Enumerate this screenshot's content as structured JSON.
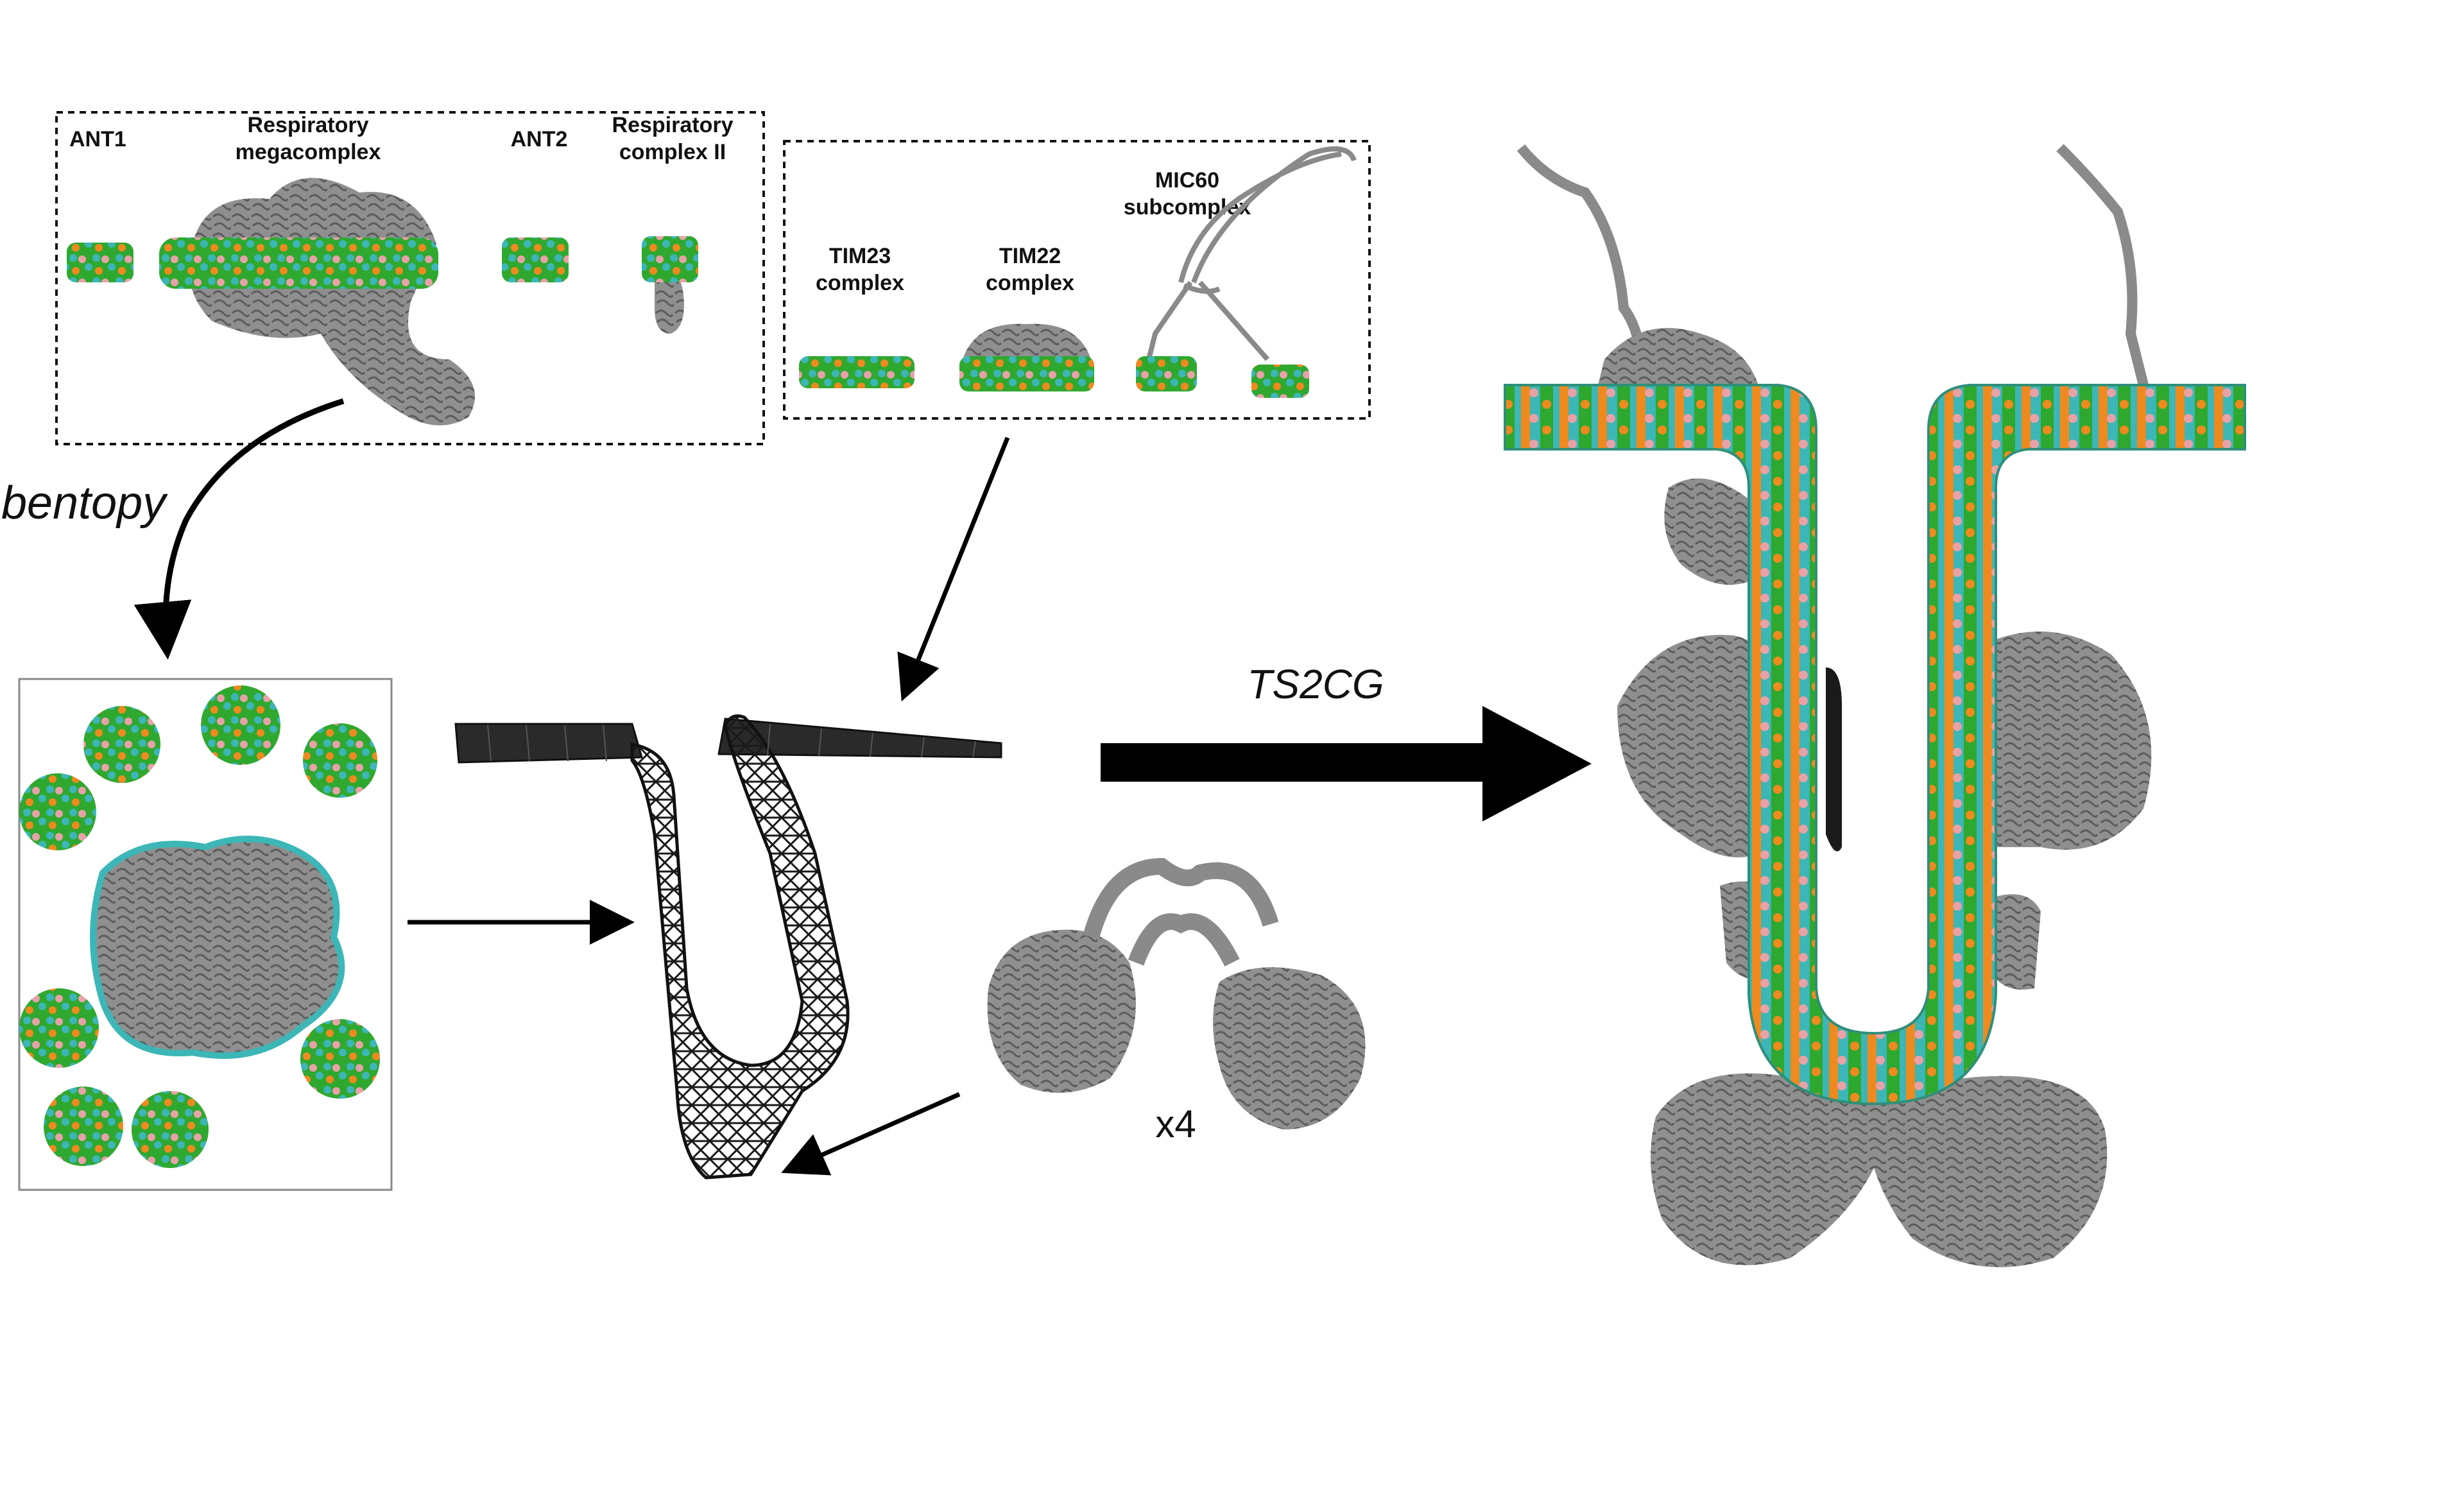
{
  "panel_top_left": {
    "labels": {
      "ant1": "ANT1",
      "resp_mega_1": "Respiratory",
      "resp_mega_2": "megacomplex",
      "ant2": "ANT2",
      "resp_c2_1": "Respiratory",
      "resp_c2_2": "complex II"
    }
  },
  "panel_top_mid": {
    "labels": {
      "tim23_1": "TIM23",
      "tim23_2": "complex",
      "tim22_1": "TIM22",
      "tim22_2": "complex",
      "mic60_1": "MIC60",
      "mic60_2": "subcomplex"
    }
  },
  "arrows": {
    "bentopy": "bentopy",
    "ts2cg": "TS2CG"
  },
  "multiplier": "x4",
  "colors": {
    "protein_gray": "#8a8a8a",
    "lipid_green": "#2fa82f",
    "lipid_cyan": "#3cb6b6",
    "lipid_pink": "#e7a2a8",
    "lipid_orange": "#ef8a1f",
    "mesh_black": "#1a1a1a"
  }
}
